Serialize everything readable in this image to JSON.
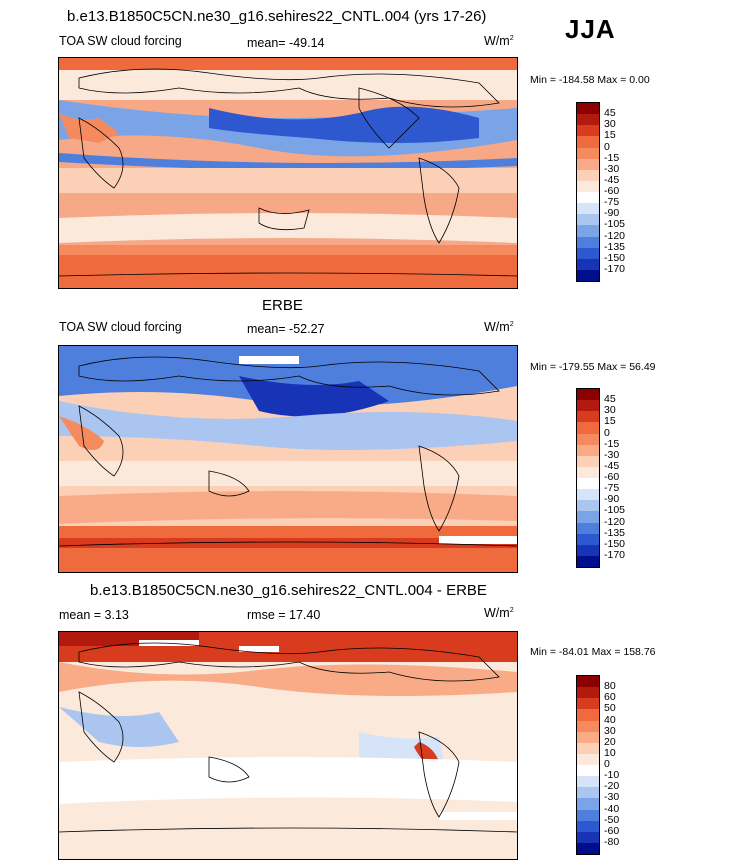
{
  "season": "JJA",
  "panels": [
    {
      "title": "b.e13.B1850C5CN.ne30_g16.sehires22_CNTL.004 (yrs 17-26)",
      "left_label": "TOA SW cloud forcing",
      "center_label": "mean= -49.14",
      "units": "W/m",
      "units_exp": "2",
      "minmax": "Min = -184.58 Max =   0.00",
      "colorbar": {
        "labels": [
          "45",
          "30",
          "15",
          "0",
          "-15",
          "-30",
          "-45",
          "-60",
          "-75",
          "-90",
          "-105",
          "-120",
          "-135",
          "-150",
          "-170"
        ],
        "colors": [
          "#8b0000",
          "#b21a10",
          "#d93b1e",
          "#ef6a3c",
          "#f48a5e",
          "#f8ab86",
          "#fcd0b6",
          "#fbe9dc",
          "#ffffff",
          "#d5e4f8",
          "#aac6f0",
          "#7ba4e6",
          "#4f7fdc",
          "#2d58cf",
          "#1733b6",
          "#000e8c"
        ]
      }
    },
    {
      "title": "ERBE",
      "left_label": "TOA SW cloud forcing",
      "center_label": "mean= -52.27",
      "units": "W/m",
      "units_exp": "2",
      "minmax": "Min = -179.55 Max =  56.49",
      "colorbar": {
        "labels": [
          "45",
          "30",
          "15",
          "0",
          "-15",
          "-30",
          "-45",
          "-60",
          "-75",
          "-90",
          "-105",
          "-120",
          "-135",
          "-150",
          "-170"
        ],
        "colors": [
          "#8b0000",
          "#b21a10",
          "#d93b1e",
          "#ef6a3c",
          "#f48a5e",
          "#f8ab86",
          "#fcd0b6",
          "#fbe9dc",
          "#ffffff",
          "#d5e4f8",
          "#aac6f0",
          "#7ba4e6",
          "#4f7fdc",
          "#2d58cf",
          "#1733b6",
          "#000e8c"
        ]
      }
    },
    {
      "title": "b.e13.B1850C5CN.ne30_g16.sehires22_CNTL.004 - ERBE",
      "left_label": "mean =   3.13",
      "center_label": "rmse =  17.40",
      "units": "W/m",
      "units_exp": "2",
      "minmax": "Min = -84.01 Max = 158.76",
      "colorbar": {
        "labels": [
          "80",
          "60",
          "50",
          "40",
          "30",
          "20",
          "10",
          "0",
          "-10",
          "-20",
          "-30",
          "-40",
          "-50",
          "-60",
          "-80"
        ],
        "colors": [
          "#8b0000",
          "#b21a10",
          "#d93b1e",
          "#ef6a3c",
          "#f48a5e",
          "#f8ab86",
          "#fcd0b6",
          "#fbe9dc",
          "#ffffff",
          "#d5e4f8",
          "#aac6f0",
          "#7ba4e6",
          "#4f7fdc",
          "#2d58cf",
          "#1733b6",
          "#000e8c"
        ]
      }
    }
  ]
}
